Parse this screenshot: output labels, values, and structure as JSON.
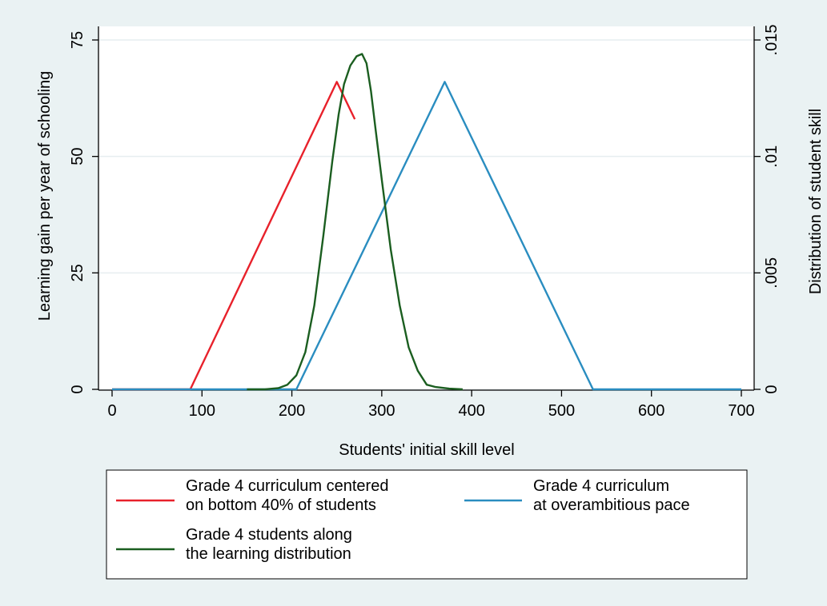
{
  "chart_data": {
    "type": "line",
    "xlabel": "Students' initial skill level",
    "ylabel_left": "Learning gain per year of schooling",
    "ylabel_right": "Distribution of student skill",
    "xlim": [
      0,
      700
    ],
    "ylim_left": [
      0,
      75
    ],
    "ylim_right": [
      0,
      0.015
    ],
    "x_ticks": [
      {
        "value": 0,
        "label": "0"
      },
      {
        "value": 100,
        "label": "100"
      },
      {
        "value": 200,
        "label": "200"
      },
      {
        "value": 300,
        "label": "300"
      },
      {
        "value": 400,
        "label": "400"
      },
      {
        "value": 500,
        "label": "500"
      },
      {
        "value": 600,
        "label": "600"
      },
      {
        "value": 700,
        "label": "700"
      }
    ],
    "y_left_ticks": [
      {
        "value": 0,
        "label": "0"
      },
      {
        "value": 25,
        "label": "25"
      },
      {
        "value": 50,
        "label": "50"
      },
      {
        "value": 75,
        "label": "75"
      }
    ],
    "y_right_ticks": [
      {
        "value": 0,
        "label": "0"
      },
      {
        "value": 0.005,
        "label": ".005"
      },
      {
        "value": 0.01,
        "label": ".01"
      },
      {
        "value": 0.015,
        "label": ".015"
      }
    ],
    "grid": "horizontal",
    "legend_position": "bottom",
    "series": [
      {
        "name": "Grade 4 curriculum centered on bottom 40% of students",
        "legend_lines": [
          "Grade 4 curriculum centered",
          "on bottom 40% of students"
        ],
        "color": "#e8212b",
        "axis": "left",
        "x": [
          0,
          87,
          250,
          270
        ],
        "y": [
          0,
          0,
          66,
          58
        ]
      },
      {
        "name": "Grade 4 curriculum at overambitious pace",
        "legend_lines": [
          "Grade 4 curriculum",
          "at overambitious pace"
        ],
        "color": "#2a8dc0",
        "axis": "left",
        "x": [
          0,
          205,
          370,
          535,
          700
        ],
        "y": [
          0,
          0,
          66,
          0,
          0
        ]
      },
      {
        "name": "Grade 4 students along the learning distribution",
        "legend_lines": [
          "Grade 4 students along",
          "the learning distribution"
        ],
        "color": "#1b5e20",
        "axis": "right",
        "x": [
          150,
          170,
          185,
          195,
          205,
          215,
          225,
          235,
          245,
          252,
          258,
          265,
          272,
          278,
          283,
          288,
          293,
          300,
          310,
          320,
          330,
          340,
          350,
          360,
          375,
          390
        ],
        "y": [
          0,
          0,
          5e-05,
          0.0002,
          0.0006,
          0.0016,
          0.0036,
          0.0066,
          0.0098,
          0.0118,
          0.0131,
          0.0139,
          0.0143,
          0.0144,
          0.014,
          0.0128,
          0.0112,
          0.009,
          0.006,
          0.0036,
          0.0018,
          0.0008,
          0.0002,
          0.0001,
          3e-05,
          0
        ]
      }
    ]
  }
}
